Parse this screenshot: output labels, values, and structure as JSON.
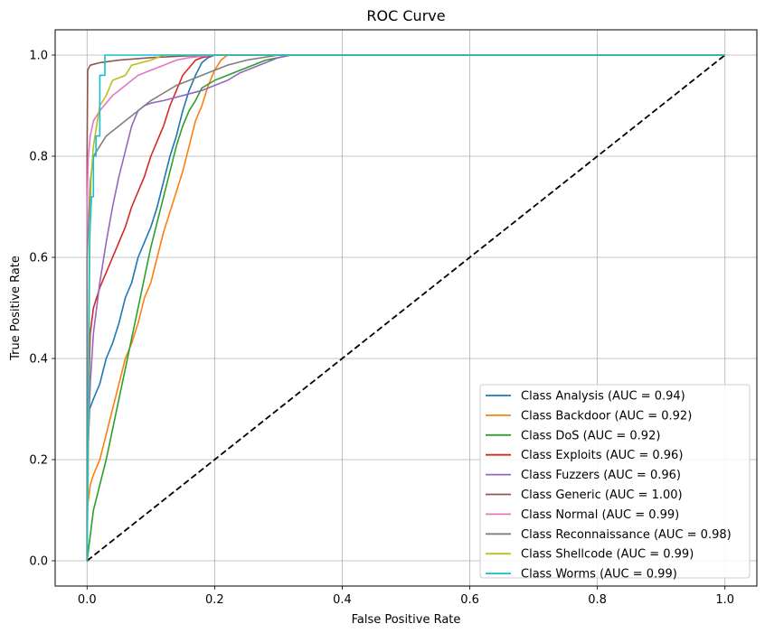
{
  "chart_data": {
    "type": "line",
    "title": "ROC Curve",
    "xlabel": "False Positive Rate",
    "ylabel": "True Positive Rate",
    "xlim": [
      -0.05,
      1.05
    ],
    "ylim": [
      -0.05,
      1.05
    ],
    "x_ticks": [
      "0.0",
      "0.2",
      "0.4",
      "0.6",
      "0.8",
      "1.0"
    ],
    "y_ticks": [
      "0.0",
      "0.2",
      "0.4",
      "0.6",
      "0.8",
      "1.0"
    ],
    "grid": true,
    "legend_position": "lower-right",
    "diagonal": {
      "style": "dashed",
      "color": "#000000",
      "points": [
        [
          0,
          0
        ],
        [
          1,
          1
        ]
      ]
    },
    "series": [
      {
        "name": "Class Analysis (AUC = 0.94)",
        "color": "#1f77b4",
        "points": [
          [
            0,
            0
          ],
          [
            0,
            0.08
          ],
          [
            0.001,
            0.2
          ],
          [
            0.004,
            0.3
          ],
          [
            0.01,
            0.32
          ],
          [
            0.02,
            0.35
          ],
          [
            0.03,
            0.4
          ],
          [
            0.04,
            0.43
          ],
          [
            0.05,
            0.47
          ],
          [
            0.06,
            0.52
          ],
          [
            0.07,
            0.55
          ],
          [
            0.08,
            0.6
          ],
          [
            0.09,
            0.63
          ],
          [
            0.1,
            0.66
          ],
          [
            0.11,
            0.7
          ],
          [
            0.12,
            0.75
          ],
          [
            0.13,
            0.8
          ],
          [
            0.14,
            0.84
          ],
          [
            0.15,
            0.89
          ],
          [
            0.16,
            0.93
          ],
          [
            0.17,
            0.96
          ],
          [
            0.18,
            0.985
          ],
          [
            0.19,
            0.995
          ],
          [
            0.2,
            1.0
          ],
          [
            1,
            1
          ]
        ]
      },
      {
        "name": "Class Backdoor (AUC = 0.92)",
        "color": "#ff7f0e",
        "points": [
          [
            0,
            0
          ],
          [
            0,
            0.1
          ],
          [
            0.005,
            0.15
          ],
          [
            0.01,
            0.17
          ],
          [
            0.02,
            0.2
          ],
          [
            0.03,
            0.25
          ],
          [
            0.04,
            0.3
          ],
          [
            0.05,
            0.35
          ],
          [
            0.06,
            0.4
          ],
          [
            0.07,
            0.43
          ],
          [
            0.08,
            0.47
          ],
          [
            0.09,
            0.52
          ],
          [
            0.1,
            0.55
          ],
          [
            0.11,
            0.6
          ],
          [
            0.12,
            0.65
          ],
          [
            0.13,
            0.69
          ],
          [
            0.14,
            0.73
          ],
          [
            0.15,
            0.77
          ],
          [
            0.16,
            0.82
          ],
          [
            0.17,
            0.87
          ],
          [
            0.18,
            0.9
          ],
          [
            0.19,
            0.94
          ],
          [
            0.2,
            0.97
          ],
          [
            0.21,
            0.99
          ],
          [
            0.22,
            1.0
          ],
          [
            1,
            1
          ]
        ]
      },
      {
        "name": "Class DoS (AUC = 0.92)",
        "color": "#2ca02c",
        "points": [
          [
            0,
            0
          ],
          [
            0.005,
            0.05
          ],
          [
            0.01,
            0.1
          ],
          [
            0.02,
            0.15
          ],
          [
            0.03,
            0.2
          ],
          [
            0.04,
            0.26
          ],
          [
            0.05,
            0.32
          ],
          [
            0.06,
            0.38
          ],
          [
            0.07,
            0.44
          ],
          [
            0.08,
            0.5
          ],
          [
            0.09,
            0.56
          ],
          [
            0.1,
            0.62
          ],
          [
            0.11,
            0.67
          ],
          [
            0.12,
            0.72
          ],
          [
            0.13,
            0.77
          ],
          [
            0.14,
            0.82
          ],
          [
            0.15,
            0.86
          ],
          [
            0.16,
            0.89
          ],
          [
            0.17,
            0.91
          ],
          [
            0.18,
            0.935
          ],
          [
            0.2,
            0.95
          ],
          [
            0.22,
            0.96
          ],
          [
            0.24,
            0.97
          ],
          [
            0.26,
            0.98
          ],
          [
            0.28,
            0.99
          ],
          [
            0.3,
            0.995
          ],
          [
            0.32,
            1.0
          ],
          [
            1,
            1
          ]
        ]
      },
      {
        "name": "Class Exploits (AUC = 0.96)",
        "color": "#d62728",
        "points": [
          [
            0,
            0
          ],
          [
            0,
            0.1
          ],
          [
            0.002,
            0.3
          ],
          [
            0.005,
            0.45
          ],
          [
            0.01,
            0.5
          ],
          [
            0.02,
            0.54
          ],
          [
            0.03,
            0.57
          ],
          [
            0.04,
            0.6
          ],
          [
            0.05,
            0.63
          ],
          [
            0.06,
            0.66
          ],
          [
            0.07,
            0.7
          ],
          [
            0.08,
            0.73
          ],
          [
            0.09,
            0.76
          ],
          [
            0.1,
            0.8
          ],
          [
            0.11,
            0.83
          ],
          [
            0.12,
            0.86
          ],
          [
            0.13,
            0.9
          ],
          [
            0.14,
            0.93
          ],
          [
            0.15,
            0.96
          ],
          [
            0.16,
            0.975
          ],
          [
            0.17,
            0.99
          ],
          [
            0.18,
            0.995
          ],
          [
            0.2,
            1.0
          ],
          [
            1,
            1
          ]
        ]
      },
      {
        "name": "Class Fuzzers (AUC = 0.96)",
        "color": "#9467bd",
        "points": [
          [
            0,
            0
          ],
          [
            0,
            0.1
          ],
          [
            0.002,
            0.25
          ],
          [
            0.005,
            0.35
          ],
          [
            0.01,
            0.45
          ],
          [
            0.02,
            0.55
          ],
          [
            0.03,
            0.63
          ],
          [
            0.04,
            0.7
          ],
          [
            0.05,
            0.76
          ],
          [
            0.06,
            0.81
          ],
          [
            0.07,
            0.86
          ],
          [
            0.08,
            0.89
          ],
          [
            0.09,
            0.9
          ],
          [
            0.1,
            0.905
          ],
          [
            0.12,
            0.91
          ],
          [
            0.15,
            0.92
          ],
          [
            0.18,
            0.93
          ],
          [
            0.2,
            0.94
          ],
          [
            0.22,
            0.95
          ],
          [
            0.24,
            0.965
          ],
          [
            0.26,
            0.975
          ],
          [
            0.28,
            0.985
          ],
          [
            0.3,
            0.995
          ],
          [
            0.32,
            1.0
          ],
          [
            1,
            1
          ]
        ]
      },
      {
        "name": "Class Generic (AUC = 1.00)",
        "color": "#8c564b",
        "points": [
          [
            0,
            0
          ],
          [
            0,
            0.8
          ],
          [
            0.001,
            0.97
          ],
          [
            0.005,
            0.98
          ],
          [
            0.02,
            0.985
          ],
          [
            0.05,
            0.99
          ],
          [
            0.1,
            0.995
          ],
          [
            0.15,
            0.998
          ],
          [
            0.2,
            1.0
          ],
          [
            1,
            1
          ]
        ]
      },
      {
        "name": "Class Normal (AUC = 0.99)",
        "color": "#e377c2",
        "points": [
          [
            0,
            0
          ],
          [
            0,
            0.7
          ],
          [
            0.002,
            0.8
          ],
          [
            0.005,
            0.84
          ],
          [
            0.01,
            0.87
          ],
          [
            0.02,
            0.89
          ],
          [
            0.03,
            0.905
          ],
          [
            0.04,
            0.92
          ],
          [
            0.05,
            0.93
          ],
          [
            0.06,
            0.94
          ],
          [
            0.07,
            0.95
          ],
          [
            0.08,
            0.96
          ],
          [
            0.1,
            0.97
          ],
          [
            0.12,
            0.98
          ],
          [
            0.14,
            0.99
          ],
          [
            0.16,
            0.995
          ],
          [
            0.2,
            1.0
          ],
          [
            1,
            1
          ]
        ]
      },
      {
        "name": "Class Reconnaissance (AUC = 0.98)",
        "color": "#7f7f7f",
        "points": [
          [
            0,
            0
          ],
          [
            0,
            0.6
          ],
          [
            0.005,
            0.75
          ],
          [
            0.01,
            0.8
          ],
          [
            0.02,
            0.82
          ],
          [
            0.03,
            0.84
          ],
          [
            0.04,
            0.85
          ],
          [
            0.05,
            0.86
          ],
          [
            0.06,
            0.87
          ],
          [
            0.07,
            0.88
          ],
          [
            0.08,
            0.89
          ],
          [
            0.09,
            0.9
          ],
          [
            0.1,
            0.91
          ],
          [
            0.12,
            0.925
          ],
          [
            0.14,
            0.94
          ],
          [
            0.16,
            0.95
          ],
          [
            0.18,
            0.96
          ],
          [
            0.2,
            0.97
          ],
          [
            0.22,
            0.98
          ],
          [
            0.25,
            0.99
          ],
          [
            0.3,
            1.0
          ],
          [
            1,
            1
          ]
        ]
      },
      {
        "name": "Class Shellcode (AUC = 0.99)",
        "color": "#bcbd22",
        "points": [
          [
            0,
            0
          ],
          [
            0.002,
            0.2
          ],
          [
            0.004,
            0.6
          ],
          [
            0.006,
            0.75
          ],
          [
            0.01,
            0.82
          ],
          [
            0.015,
            0.86
          ],
          [
            0.02,
            0.9
          ],
          [
            0.03,
            0.92
          ],
          [
            0.04,
            0.95
          ],
          [
            0.05,
            0.955
          ],
          [
            0.06,
            0.96
          ],
          [
            0.07,
            0.98
          ],
          [
            0.1,
            0.99
          ],
          [
            0.12,
            1.0
          ],
          [
            1,
            1
          ]
        ]
      },
      {
        "name": "Class Worms (AUC = 0.99)",
        "color": "#17becf",
        "points": [
          [
            0,
            0
          ],
          [
            0.004,
            0.64
          ],
          [
            0.007,
            0.72
          ],
          [
            0.01,
            0.72
          ],
          [
            0.01,
            0.8
          ],
          [
            0.014,
            0.8
          ],
          [
            0.014,
            0.84
          ],
          [
            0.02,
            0.84
          ],
          [
            0.02,
            0.96
          ],
          [
            0.028,
            0.96
          ],
          [
            0.028,
            1.0
          ],
          [
            1,
            1
          ]
        ]
      }
    ]
  }
}
